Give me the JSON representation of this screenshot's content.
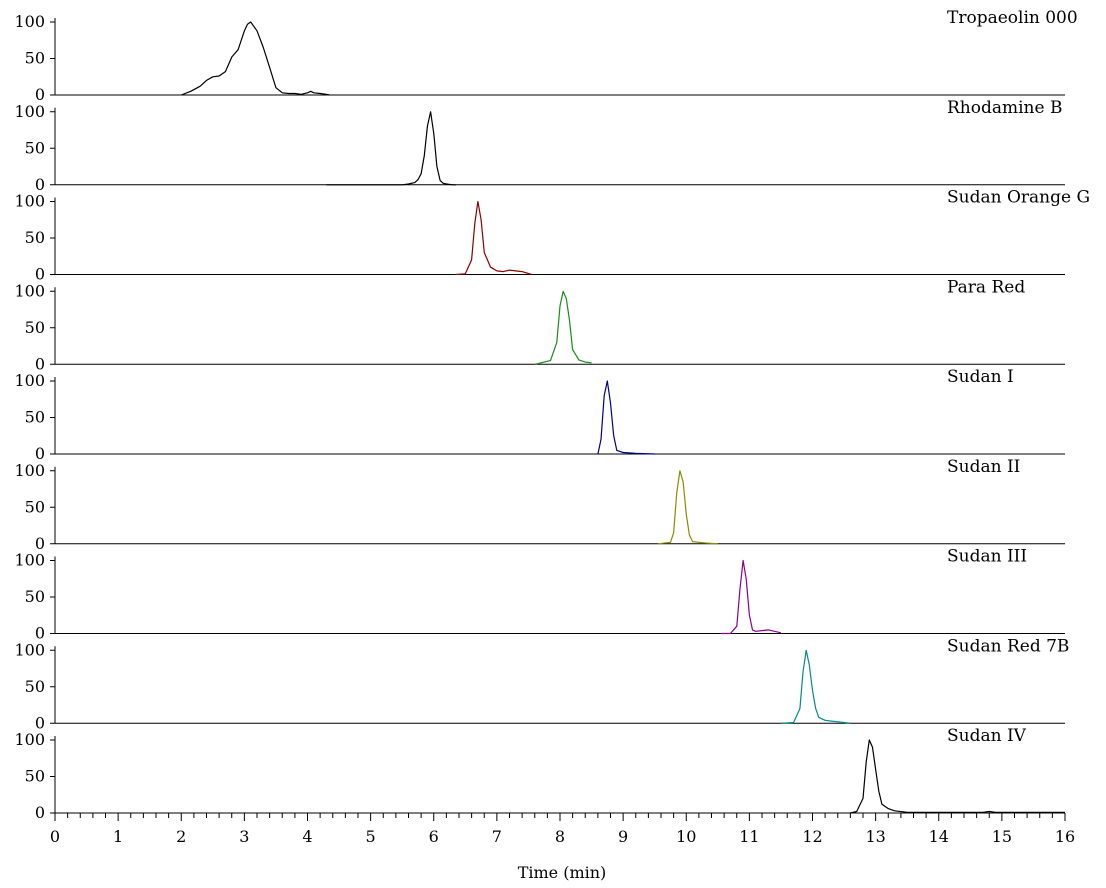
{
  "chart_data": {
    "type": "line",
    "layout": "stacked-panels",
    "xlabel": "Time (min)",
    "xlim": [
      0,
      16
    ],
    "ylim": [
      0,
      100
    ],
    "x_ticks": [
      "0",
      "1",
      "2",
      "3",
      "4",
      "5",
      "6",
      "7",
      "8",
      "9",
      "10",
      "11",
      "12",
      "13",
      "14",
      "15",
      "16"
    ],
    "y_ticks": [
      "0",
      "50",
      "100"
    ],
    "series": [
      {
        "name": "Tropaeolin 000",
        "color": "#000000",
        "x": [
          2.0,
          2.15,
          2.3,
          2.4,
          2.5,
          2.6,
          2.7,
          2.8,
          2.9,
          3.0,
          3.05,
          3.1,
          3.2,
          3.3,
          3.4,
          3.5,
          3.6,
          3.7,
          3.8,
          3.9,
          4.0,
          4.05,
          4.1,
          4.2,
          4.3,
          4.35
        ],
        "y": [
          0,
          5,
          12,
          20,
          25,
          26,
          32,
          52,
          62,
          88,
          97,
          100,
          88,
          65,
          38,
          10,
          3,
          2,
          2,
          1,
          3,
          5,
          3,
          2,
          1,
          0
        ]
      },
      {
        "name": "Rhodamine B",
        "color": "#000000",
        "x": [
          4.3,
          5.0,
          5.5,
          5.6,
          5.7,
          5.75,
          5.8,
          5.85,
          5.9,
          5.95,
          6.0,
          6.05,
          6.1,
          6.15,
          6.2,
          6.3,
          6.35
        ],
        "y": [
          0,
          0,
          0,
          1,
          3,
          7,
          15,
          40,
          80,
          100,
          70,
          25,
          6,
          2,
          1,
          0,
          0
        ]
      },
      {
        "name": "Sudan Orange G",
        "color": "#8b0000",
        "x": [
          6.35,
          6.5,
          6.6,
          6.65,
          6.7,
          6.75,
          6.8,
          6.9,
          7.0,
          7.1,
          7.2,
          7.3,
          7.4,
          7.55
        ],
        "y": [
          0,
          1,
          20,
          70,
          100,
          75,
          30,
          10,
          5,
          4,
          6,
          5,
          4,
          0
        ]
      },
      {
        "name": "Para Red",
        "color": "#1a8a1a",
        "x": [
          7.6,
          7.85,
          7.95,
          8.0,
          8.05,
          8.1,
          8.15,
          8.2,
          8.3,
          8.4,
          8.5
        ],
        "y": [
          0,
          5,
          30,
          80,
          100,
          90,
          60,
          20,
          6,
          3,
          2
        ]
      },
      {
        "name": "Sudan I",
        "color": "#00008b",
        "x": [
          8.6,
          8.65,
          8.7,
          8.75,
          8.8,
          8.85,
          8.9,
          9.0,
          9.2,
          9.5
        ],
        "y": [
          0,
          20,
          80,
          100,
          70,
          25,
          5,
          2,
          1,
          0
        ]
      },
      {
        "name": "Sudan II",
        "color": "#8b8b00",
        "x": [
          9.55,
          9.75,
          9.8,
          9.85,
          9.9,
          9.95,
          10.0,
          10.05,
          10.1,
          10.2,
          10.3,
          10.5
        ],
        "y": [
          0,
          2,
          15,
          70,
          100,
          85,
          40,
          12,
          3,
          2,
          1,
          0
        ]
      },
      {
        "name": "Sudan III",
        "color": "#8b008b",
        "x": [
          10.55,
          10.7,
          10.8,
          10.85,
          10.9,
          10.95,
          11.0,
          11.05,
          11.1,
          11.2,
          11.3,
          11.4,
          11.5
        ],
        "y": [
          0,
          0,
          10,
          60,
          100,
          75,
          25,
          5,
          3,
          4,
          5,
          3,
          1
        ]
      },
      {
        "name": "Sudan Red 7B",
        "color": "#008b8b",
        "x": [
          11.5,
          11.7,
          11.8,
          11.85,
          11.9,
          11.95,
          12.0,
          12.05,
          12.1,
          12.2,
          12.3,
          12.4,
          12.5,
          12.6
        ],
        "y": [
          0,
          1,
          20,
          70,
          100,
          80,
          45,
          20,
          8,
          4,
          3,
          2,
          1,
          0
        ]
      },
      {
        "name": "Sudan IV",
        "color": "#000000",
        "x": [
          12.6,
          12.7,
          12.8,
          12.85,
          12.9,
          12.95,
          13.0,
          13.05,
          13.1,
          13.2,
          13.3,
          13.5,
          13.8,
          14.2,
          14.5,
          14.7,
          14.8,
          14.9,
          15.2,
          15.6,
          16.0
        ],
        "y": [
          0,
          2,
          20,
          70,
          100,
          90,
          60,
          30,
          12,
          6,
          3,
          1,
          1,
          1,
          1,
          1,
          2,
          1,
          1,
          1,
          1
        ]
      }
    ]
  }
}
